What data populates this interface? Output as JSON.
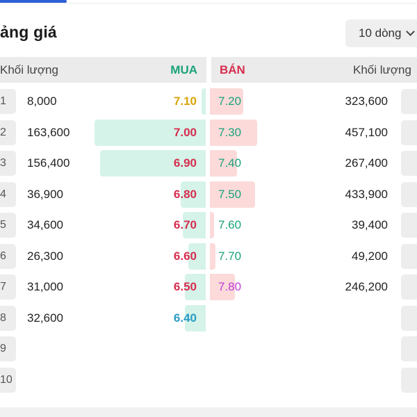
{
  "title": "ảng giá",
  "rows_select": {
    "label": "10 dòng"
  },
  "header": {
    "volume_left": "Khối lượng",
    "buy": "MUA",
    "sell": "BÁN",
    "volume_right": "Khối lượng"
  },
  "colors": {
    "up": "#19a37a",
    "down": "#d62d4f",
    "reference": "#d8a30a",
    "floor": "#2a9bc4",
    "ceiling": "#c13ad6"
  },
  "rows": [
    {
      "index": "1",
      "buy_volume": "8,000",
      "buy_price": "7.10",
      "buy_status": "reference",
      "buy_depth": 0.02,
      "sell_price": "7.20",
      "sell_status": "up",
      "sell_volume": "323,600",
      "sell_depth": 0.32
    },
    {
      "index": "2",
      "buy_volume": "163,600",
      "buy_price": "7.00",
      "buy_status": "down",
      "buy_depth": 0.58,
      "sell_price": "7.30",
      "sell_status": "up",
      "sell_volume": "457,100",
      "sell_depth": 0.45
    },
    {
      "index": "3",
      "buy_volume": "156,400",
      "buy_price": "6.90",
      "buy_status": "down",
      "buy_depth": 0.55,
      "sell_price": "7.40",
      "sell_status": "up",
      "sell_volume": "267,400",
      "sell_depth": 0.26
    },
    {
      "index": "4",
      "buy_volume": "36,900",
      "buy_price": "6.80",
      "buy_status": "down",
      "buy_depth": 0.13,
      "sell_price": "7.50",
      "sell_status": "up",
      "sell_volume": "433,900",
      "sell_depth": 0.43
    },
    {
      "index": "5",
      "buy_volume": "34,600",
      "buy_price": "6.70",
      "buy_status": "down",
      "buy_depth": 0.12,
      "sell_price": "7.60",
      "sell_status": "up",
      "sell_volume": "39,400",
      "sell_depth": 0.04
    },
    {
      "index": "6",
      "buy_volume": "26,300",
      "buy_price": "6.60",
      "buy_status": "down",
      "buy_depth": 0.09,
      "sell_price": "7.70",
      "sell_status": "up",
      "sell_volume": "49,200",
      "sell_depth": 0.05
    },
    {
      "index": "7",
      "buy_volume": "31,000",
      "buy_price": "6.50",
      "buy_status": "down",
      "buy_depth": 0.11,
      "sell_price": "7.80",
      "sell_status": "ceiling",
      "sell_volume": "246,200",
      "sell_depth": 0.24
    },
    {
      "index": "8",
      "buy_volume": "32,600",
      "buy_price": "6.40",
      "buy_status": "floor",
      "buy_depth": 0.11,
      "sell_price": "",
      "sell_status": "",
      "sell_volume": "",
      "sell_depth": 0
    },
    {
      "index": "9",
      "buy_volume": "",
      "buy_price": "",
      "buy_status": "",
      "buy_depth": 0,
      "sell_price": "",
      "sell_status": "",
      "sell_volume": "",
      "sell_depth": 0
    },
    {
      "index": "10",
      "buy_volume": "",
      "buy_price": "",
      "buy_status": "",
      "buy_depth": 0,
      "sell_price": "",
      "sell_status": "",
      "sell_volume": "",
      "sell_depth": 0
    }
  ]
}
